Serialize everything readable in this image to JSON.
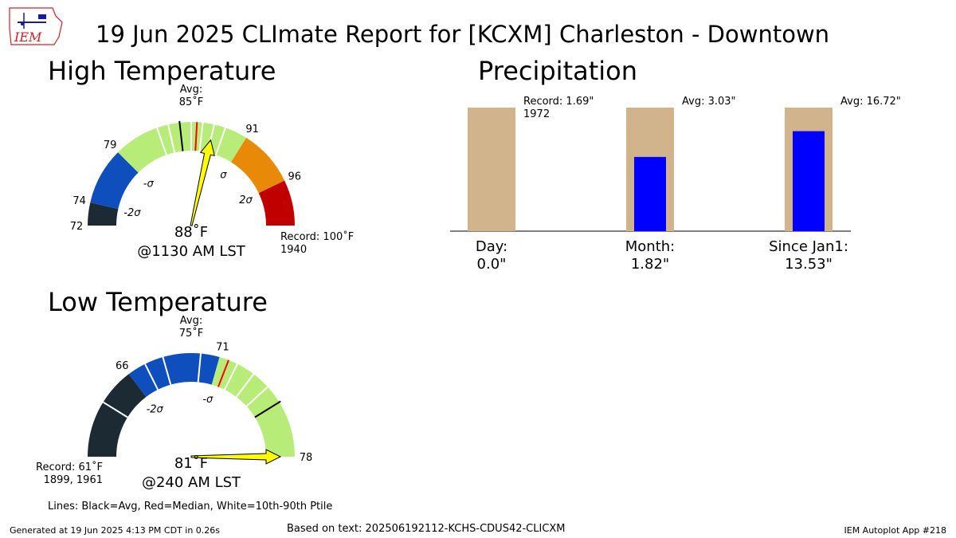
{
  "title": "19 Jun 2025 CLImate Report for [KCXM] Charleston - Downtown",
  "logo_text": "IEM",
  "sections": {
    "high": "High Temperature",
    "low": "Low Temperature",
    "precip": "Precipitation"
  },
  "legend_lines": "Lines: Black=Avg, Red=Median, White=10th-90th Ptile",
  "footer": {
    "generated": "Generated at 19 Jun 2025 4:13 PM CDT in 0.26s",
    "based_on": "Based on text: 202506192112-KCHS-CDUS42-CLICXM",
    "app": "IEM Autoplot App #218"
  },
  "colors": {
    "gauge_black": "#1c2a33",
    "gauge_blue": "#0f4fbd",
    "gauge_green": "#b8ec78",
    "gauge_orange": "#e88a07",
    "gauge_red": "#c00000",
    "needle": "#ffff00",
    "precip_total": "#d2b48c",
    "precip_obs": "#0000ff"
  },
  "chart_data": [
    {
      "type": "gauge",
      "name": "high",
      "min": 72,
      "max": 100,
      "avg": 85,
      "median": 86.5,
      "observed": 88,
      "percentile_lines": [
        84,
        83,
        86,
        87,
        88,
        89
      ],
      "bands": [
        {
          "from": 72,
          "to": 74,
          "color": "gauge_black"
        },
        {
          "from": 74,
          "to": 79,
          "color": "gauge_blue"
        },
        {
          "from": 79,
          "to": 91,
          "color": "gauge_green"
        },
        {
          "from": 91,
          "to": 96,
          "color": "gauge_orange"
        },
        {
          "from": 96,
          "to": 100,
          "color": "gauge_red"
        }
      ],
      "tick_labels": [
        {
          "value": 72,
          "text": "72"
        },
        {
          "value": 74,
          "text": "74"
        },
        {
          "value": 79,
          "text": "79"
        },
        {
          "value": 91,
          "text": "91"
        },
        {
          "value": 96,
          "text": "96"
        }
      ],
      "sigma_labels": [
        {
          "value": 74,
          "text": "-2σ"
        },
        {
          "value": 79,
          "text": "-σ"
        },
        {
          "value": 91,
          "text": "σ"
        },
        {
          "value": 96,
          "text": "2σ"
        }
      ],
      "avg_label": "Avg:",
      "avg_value_label": "85˚F",
      "obs_label": "88˚F",
      "time_label": "@1130 AM LST",
      "record_label": "Record: 100˚F",
      "record_year": "1940"
    },
    {
      "type": "gauge",
      "name": "low",
      "min": 61,
      "max": 78,
      "avg": 75,
      "median": 71.5,
      "observed": 81,
      "percentile_lines": [
        64,
        67,
        68,
        70,
        72,
        73,
        74
      ],
      "bands": [
        {
          "from": 61,
          "to": 66,
          "color": "gauge_black"
        },
        {
          "from": 66,
          "to": 71,
          "color": "gauge_blue"
        },
        {
          "from": 71,
          "to": 78,
          "color": "gauge_green"
        }
      ],
      "tick_labels": [
        {
          "value": 66,
          "text": "66"
        },
        {
          "value": 71,
          "text": "71"
        },
        {
          "value": 78,
          "text": "78"
        }
      ],
      "sigma_labels": [
        {
          "value": 66,
          "text": "-2σ"
        },
        {
          "value": 71,
          "text": "-σ"
        }
      ],
      "avg_label": "Avg:",
      "avg_value_label": "75˚F",
      "obs_label": "81˚F",
      "time_label": "@240 AM LST",
      "record_label": "Record: 61˚F",
      "record_year": "1899, 1961"
    },
    {
      "type": "bar",
      "name": "precipitation",
      "ylim": [
        0,
        1.69
      ],
      "categories": [
        {
          "label": "Day:",
          "value_label": "0.0\"",
          "observed": 0.0,
          "reference": 1.69,
          "note": "Record: 1.69\"",
          "note2": "1972"
        },
        {
          "label": "Month:",
          "value_label": "1.82\"",
          "observed": 1.82,
          "reference": 3.03,
          "note": "Avg: 3.03\"",
          "note2": ""
        },
        {
          "label": "Since Jan1:",
          "value_label": "13.53\"",
          "observed": 13.53,
          "reference": 16.72,
          "note": "Avg: 16.72\"",
          "note2": ""
        }
      ]
    }
  ]
}
